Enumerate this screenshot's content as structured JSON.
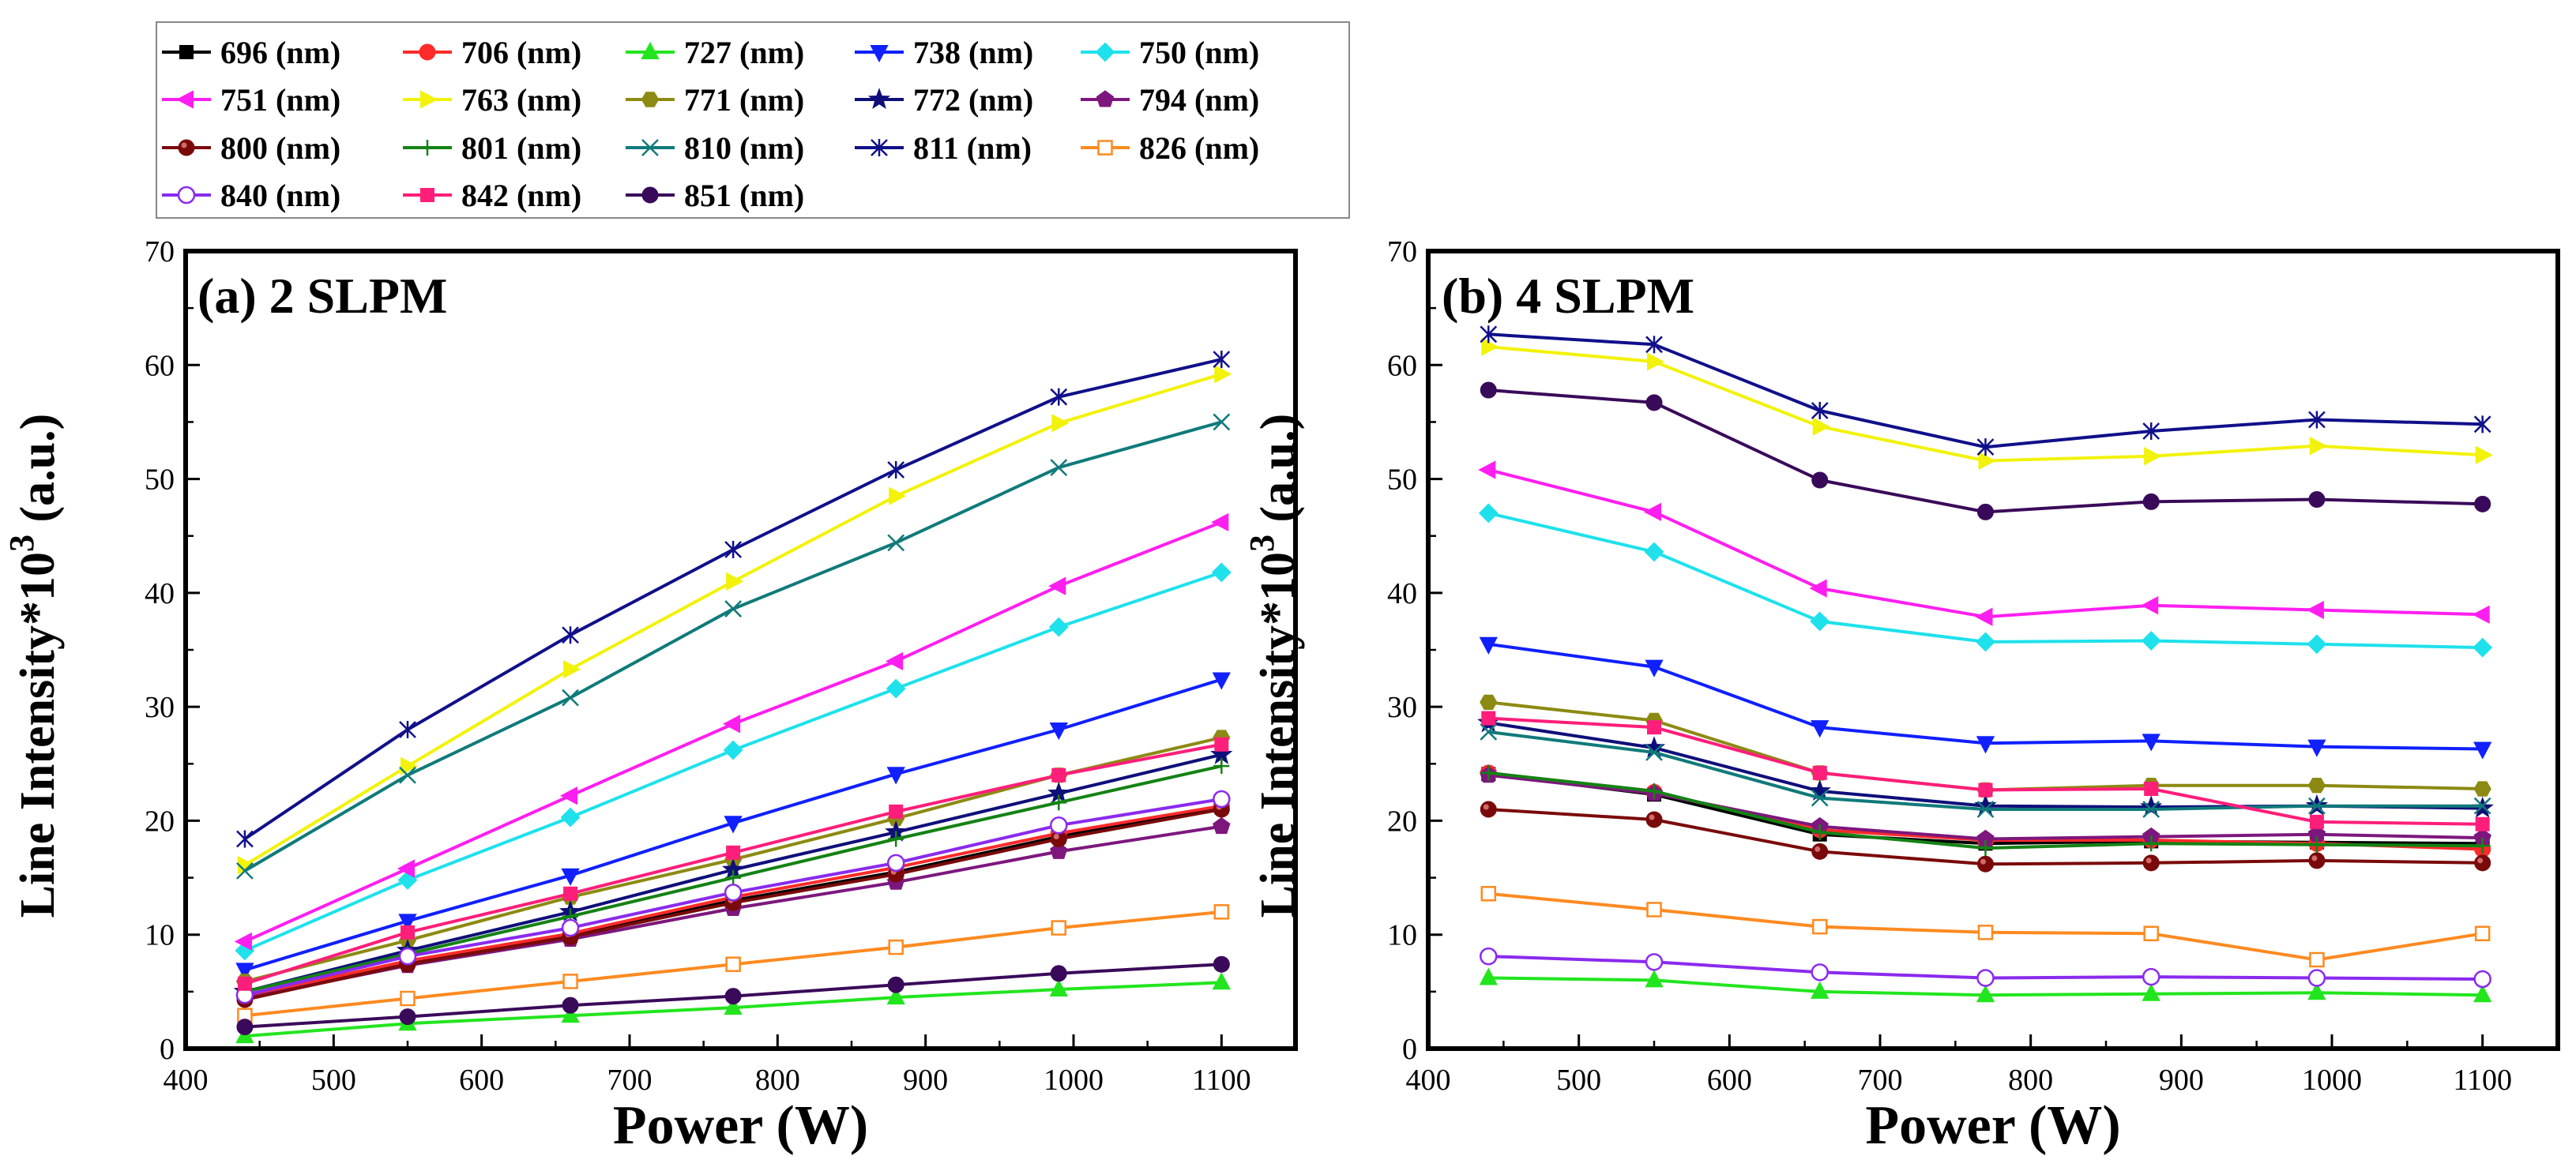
{
  "legend": {
    "entries": [
      {
        "label": "696 (nm)",
        "color": "#000000",
        "marker": "square"
      },
      {
        "label": "706 (nm)",
        "color": "#ff2a2a",
        "marker": "circle"
      },
      {
        "label": "727 (nm)",
        "color": "#22e51e",
        "marker": "triangle-up"
      },
      {
        "label": "738 (nm)",
        "color": "#1020ff",
        "marker": "triangle-down"
      },
      {
        "label": "750 (nm)",
        "color": "#1ee1ec",
        "marker": "diamond"
      },
      {
        "label": "751 (nm)",
        "color": "#ff1ef0",
        "marker": "triangle-left"
      },
      {
        "label": "763 (nm)",
        "color": "#f2f20a",
        "marker": "triangle-right"
      },
      {
        "label": "771 (nm)",
        "color": "#8c8a12",
        "marker": "hexagon"
      },
      {
        "label": "772 (nm)",
        "color": "#0f0f7a",
        "marker": "star"
      },
      {
        "label": "794 (nm)",
        "color": "#7d177d",
        "marker": "pentagon"
      },
      {
        "label": "800 (nm)",
        "color": "#7a0a0a",
        "marker": "circle-half"
      },
      {
        "label": "801 (nm)",
        "color": "#148214",
        "marker": "plus"
      },
      {
        "label": "810 (nm)",
        "color": "#107a7a",
        "marker": "x"
      },
      {
        "label": "811 (nm)",
        "color": "#10108a",
        "marker": "asterisk"
      },
      {
        "label": "826 (nm)",
        "color": "#ff8a20",
        "marker": "square-open"
      },
      {
        "label": "840 (nm)",
        "color": "#8a2aee",
        "marker": "circle-open"
      },
      {
        "label": "842 (nm)",
        "color": "#ff1e7a",
        "marker": "square"
      },
      {
        "label": "851 (nm)",
        "color": "#3a0a5a",
        "marker": "circle"
      }
    ]
  },
  "chart_data": [
    {
      "type": "line",
      "title": "(a) 2 SLPM",
      "xlabel": "Power (W)",
      "ylabel_main": "Line Intensity*10",
      "ylabel_exp": "3",
      "ylabel_unit": " (a.u.)",
      "xlim": [
        400,
        1150
      ],
      "ylim": [
        0,
        70
      ],
      "xticks": [
        "400",
        "500",
        "600",
        "700",
        "800",
        "900",
        "1000",
        "1100"
      ],
      "yticks": [
        "0",
        "10",
        "20",
        "30",
        "40",
        "50",
        "60",
        "70"
      ],
      "x": [
        440,
        550,
        660,
        770,
        880,
        990,
        1100
      ],
      "series": [
        {
          "name": "696 (nm)",
          "values": [
            4.5,
            7.6,
            9.9,
            13.0,
            15.5,
            18.6,
            21.2
          ]
        },
        {
          "name": "706 (nm)",
          "values": [
            4.6,
            7.7,
            10.1,
            13.3,
            15.9,
            18.9,
            21.3
          ]
        },
        {
          "name": "727 (nm)",
          "values": [
            1.1,
            2.2,
            2.9,
            3.6,
            4.5,
            5.2,
            5.8
          ]
        },
        {
          "name": "738 (nm)",
          "values": [
            6.9,
            11.2,
            15.2,
            19.8,
            24.1,
            28.0,
            32.4
          ]
        },
        {
          "name": "750 (nm)",
          "values": [
            8.6,
            14.8,
            20.3,
            26.2,
            31.6,
            37.0,
            41.8
          ]
        },
        {
          "name": "751 (nm)",
          "values": [
            9.4,
            15.8,
            22.2,
            28.5,
            34.0,
            40.6,
            46.2
          ]
        },
        {
          "name": "763 (nm)",
          "values": [
            16.1,
            24.8,
            33.3,
            41.0,
            48.5,
            54.9,
            59.2
          ]
        },
        {
          "name": "771 (nm)",
          "values": [
            5.9,
            9.5,
            13.3,
            16.6,
            20.2,
            24.0,
            27.3
          ]
        },
        {
          "name": "772 (nm)",
          "values": [
            5.0,
            8.6,
            12.0,
            15.7,
            19.0,
            22.4,
            25.8
          ]
        },
        {
          "name": "794 (nm)",
          "values": [
            4.4,
            7.3,
            9.6,
            12.3,
            14.6,
            17.3,
            19.5
          ]
        },
        {
          "name": "800 (nm)",
          "values": [
            4.3,
            7.4,
            9.8,
            12.8,
            15.3,
            18.4,
            21.0
          ]
        },
        {
          "name": "801 (nm)",
          "values": [
            5.0,
            8.3,
            11.6,
            15.0,
            18.4,
            21.6,
            24.8
          ]
        },
        {
          "name": "810 (nm)",
          "values": [
            15.6,
            24.0,
            30.8,
            38.6,
            44.4,
            51.0,
            55.0
          ]
        },
        {
          "name": "811 (nm)",
          "values": [
            18.4,
            28.0,
            36.3,
            43.8,
            50.8,
            57.2,
            60.5
          ]
        },
        {
          "name": "826 (nm)",
          "values": [
            2.9,
            4.4,
            5.9,
            7.4,
            8.9,
            10.6,
            12.0
          ]
        },
        {
          "name": "840 (nm)",
          "values": [
            4.7,
            8.1,
            10.6,
            13.7,
            16.3,
            19.6,
            21.9
          ]
        },
        {
          "name": "842 (nm)",
          "values": [
            5.7,
            10.2,
            13.6,
            17.2,
            20.8,
            24.0,
            26.7
          ]
        },
        {
          "name": "851 (nm)",
          "values": [
            1.9,
            2.8,
            3.8,
            4.6,
            5.6,
            6.6,
            7.4
          ]
        }
      ]
    },
    {
      "type": "line",
      "title": "(b) 4 SLPM",
      "xlabel": "Power (W)",
      "ylabel_main": "Line Intensity*10",
      "ylabel_exp": "3",
      "ylabel_unit": " (a.u.)",
      "xlim": [
        400,
        1150
      ],
      "ylim": [
        0,
        70
      ],
      "xticks": [
        "400",
        "500",
        "600",
        "700",
        "800",
        "900",
        "1000",
        "1100"
      ],
      "yticks": [
        "0",
        "10",
        "20",
        "30",
        "40",
        "50",
        "60",
        "70"
      ],
      "x": [
        440,
        550,
        660,
        770,
        880,
        990,
        1100
      ],
      "series": [
        {
          "name": "696 (nm)",
          "values": [
            24.1,
            22.3,
            18.8,
            18.0,
            18.2,
            18.1,
            18.0
          ]
        },
        {
          "name": "706 (nm)",
          "values": [
            24.2,
            22.5,
            19.2,
            18.3,
            18.3,
            18.0,
            17.5
          ]
        },
        {
          "name": "727 (nm)",
          "values": [
            6.2,
            6.0,
            5.0,
            4.7,
            4.8,
            4.9,
            4.7
          ]
        },
        {
          "name": "738 (nm)",
          "values": [
            35.5,
            33.5,
            28.2,
            26.8,
            27.0,
            26.5,
            26.3
          ]
        },
        {
          "name": "750 (nm)",
          "values": [
            47.0,
            43.6,
            37.5,
            35.7,
            35.8,
            35.5,
            35.2
          ]
        },
        {
          "name": "751 (nm)",
          "values": [
            50.8,
            47.1,
            40.4,
            37.9,
            38.9,
            38.5,
            38.1
          ]
        },
        {
          "name": "763 (nm)",
          "values": [
            61.6,
            60.3,
            54.6,
            51.6,
            52.0,
            52.9,
            52.1
          ]
        },
        {
          "name": "771 (nm)",
          "values": [
            30.4,
            28.8,
            24.2,
            22.7,
            23.1,
            23.1,
            22.8
          ]
        },
        {
          "name": "772 (nm)",
          "values": [
            28.6,
            26.4,
            22.6,
            21.3,
            21.2,
            21.3,
            21.1
          ]
        },
        {
          "name": "794 (nm)",
          "values": [
            24.0,
            22.4,
            19.5,
            18.4,
            18.6,
            18.8,
            18.5
          ]
        },
        {
          "name": "800 (nm)",
          "values": [
            21.0,
            20.1,
            17.3,
            16.2,
            16.3,
            16.5,
            16.3
          ]
        },
        {
          "name": "801 (nm)",
          "values": [
            24.2,
            22.6,
            19.0,
            17.6,
            18.0,
            17.9,
            17.8
          ]
        },
        {
          "name": "810 (nm)",
          "values": [
            27.8,
            26.0,
            22.0,
            21.0,
            21.0,
            21.3,
            21.3
          ]
        },
        {
          "name": "811 (nm)",
          "values": [
            62.7,
            61.8,
            56.0,
            52.8,
            54.2,
            55.2,
            54.8
          ]
        },
        {
          "name": "826 (nm)",
          "values": [
            13.6,
            12.2,
            10.7,
            10.2,
            10.1,
            7.8,
            10.1
          ]
        },
        {
          "name": "840 (nm)",
          "values": [
            8.1,
            7.6,
            6.7,
            6.2,
            6.3,
            6.2,
            6.1
          ]
        },
        {
          "name": "842 (nm)",
          "values": [
            29.0,
            28.2,
            24.2,
            22.7,
            22.8,
            19.9,
            19.7
          ]
        },
        {
          "name": "851 (nm)",
          "values": [
            57.8,
            56.7,
            49.9,
            47.1,
            48.0,
            48.2,
            47.8
          ]
        }
      ]
    }
  ]
}
